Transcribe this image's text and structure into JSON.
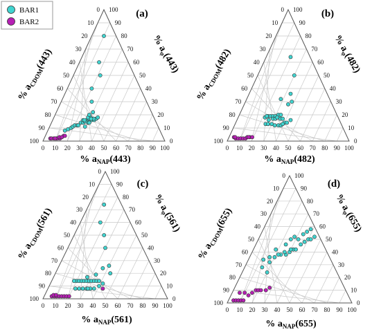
{
  "legend": {
    "items": [
      {
        "label": "BAR1",
        "color": "#40d4d0"
      },
      {
        "label": "BAR2",
        "color": "#b61fb4"
      }
    ]
  },
  "ticks": [
    "0",
    "10",
    "20",
    "30",
    "40",
    "50",
    "60",
    "70",
    "80",
    "90",
    "100"
  ],
  "chart_data": [
    {
      "type": "scatter",
      "panel_label": "(a)",
      "left_axis": {
        "pre": "% a",
        "sub": "CDOM",
        "post": "(443)"
      },
      "right_axis": {
        "pre": "% a",
        "sub": "φ",
        "post": "(443)"
      },
      "bottom_axis": {
        "pre": "% a",
        "sub": "NAP",
        "post": "(443)"
      },
      "series": [
        {
          "name": "BAR1",
          "points": [
            [
              14,
              78,
              8
            ],
            [
              16,
              75,
              9
            ],
            [
              18,
              72,
              10
            ],
            [
              19,
              70,
              11
            ],
            [
              20,
              68,
              12
            ],
            [
              22,
              66,
              12
            ],
            [
              24,
              62,
              14
            ],
            [
              23,
              65,
              12
            ],
            [
              26,
              60,
              14
            ],
            [
              27,
              58,
              15
            ],
            [
              28,
              56,
              16
            ],
            [
              29,
              54,
              17
            ],
            [
              30,
              56,
              14
            ],
            [
              32,
              52,
              16
            ],
            [
              31,
              55,
              14
            ],
            [
              34,
              50,
              16
            ],
            [
              35,
              48,
              17
            ],
            [
              33,
              50,
              17
            ],
            [
              30,
              52,
              18
            ],
            [
              28,
              54,
              18
            ],
            [
              27,
              58,
              15
            ],
            [
              25,
              59,
              16
            ],
            [
              36,
              46,
              18
            ],
            [
              31,
              52,
              17
            ],
            [
              26,
              58,
              16
            ],
            [
              30,
              48,
              22
            ],
            [
              28,
              52,
              20
            ],
            [
              29,
              60,
              11
            ],
            [
              25,
              45,
              30
            ],
            [
              20,
              40,
              40
            ],
            [
              22,
              28,
              50
            ],
            [
              16,
              24,
              60
            ],
            [
              10,
              10,
              80
            ]
          ]
        },
        {
          "name": "BAR2",
          "points": [
            [
              5,
              93,
              2
            ],
            [
              6,
              92,
              2
            ],
            [
              8,
              90,
              2
            ],
            [
              10,
              88,
              2
            ],
            [
              11,
              87,
              2
            ],
            [
              13,
              85,
              2
            ],
            [
              12,
              85,
              3
            ],
            [
              15,
              81,
              4
            ],
            [
              14,
              83,
              3
            ],
            [
              9,
              89,
              2
            ],
            [
              16,
              80,
              4
            ]
          ]
        }
      ]
    },
    {
      "type": "scatter",
      "panel_label": "(b)",
      "left_axis": {
        "pre": "% a",
        "sub": "CDOM",
        "post": "(482)"
      },
      "right_axis": {
        "pre": "% a",
        "sub": "φ",
        "post": "(482)"
      },
      "bottom_axis": {
        "pre": "% a",
        "sub": "NAP",
        "post": "(482)"
      },
      "series": [
        {
          "name": "BAR1",
          "points": [
            [
              22,
              60,
              18
            ],
            [
              24,
              57,
              19
            ],
            [
              26,
              55,
              19
            ],
            [
              28,
              53,
              19
            ],
            [
              30,
              51,
              19
            ],
            [
              32,
              48,
              20
            ],
            [
              34,
              46,
              20
            ],
            [
              25,
              62,
              13
            ],
            [
              27,
              60,
              13
            ],
            [
              30,
              57,
              13
            ],
            [
              33,
              55,
              12
            ],
            [
              36,
              52,
              12
            ],
            [
              38,
              50,
              12
            ],
            [
              40,
              46,
              14
            ],
            [
              42,
              44,
              14
            ],
            [
              23,
              58,
              19
            ],
            [
              29,
              54,
              17
            ],
            [
              31,
              52,
              17
            ],
            [
              35,
              48,
              17
            ],
            [
              37,
              46,
              17
            ],
            [
              26,
              58,
              16
            ],
            [
              32,
              50,
              18
            ],
            [
              44,
              40,
              16
            ],
            [
              39,
              48,
              13
            ],
            [
              36,
              36,
              28
            ],
            [
              34,
              30,
              36
            ],
            [
              28,
              40,
              32
            ],
            [
              30,
              20,
              50
            ],
            [
              20,
              16,
              64
            ],
            [
              38,
              32,
              30
            ]
          ]
        },
        {
          "name": "BAR2",
          "points": [
            [
              4,
              93,
              3
            ],
            [
              6,
              92,
              2
            ],
            [
              8,
              90,
              2
            ],
            [
              10,
              88,
              2
            ],
            [
              12,
              86,
              2
            ],
            [
              14,
              84,
              2
            ],
            [
              15,
              82,
              3
            ],
            [
              17,
              80,
              3
            ],
            [
              19,
              78,
              3
            ],
            [
              16,
              81,
              3
            ],
            [
              5,
              92,
              3
            ]
          ]
        }
      ]
    },
    {
      "type": "scatter",
      "panel_label": "(c)",
      "left_axis": {
        "pre": "% a",
        "sub": "CDOM",
        "post": "(561)"
      },
      "right_axis": {
        "pre": "% a",
        "sub": "φ",
        "post": "(561)"
      },
      "bottom_axis": {
        "pre": "% a",
        "sub": "NAP",
        "post": "(561)"
      },
      "series": [
        {
          "name": "BAR1",
          "points": [
            [
              20,
              66,
              14
            ],
            [
              22,
              64,
              14
            ],
            [
              24,
              62,
              14
            ],
            [
              26,
              60,
              14
            ],
            [
              28,
              58,
              14
            ],
            [
              30,
              56,
              14
            ],
            [
              32,
              54,
              14
            ],
            [
              34,
              52,
              14
            ],
            [
              36,
              50,
              14
            ],
            [
              38,
              48,
              14
            ],
            [
              22,
              70,
              8
            ],
            [
              25,
              67,
              8
            ],
            [
              28,
              64,
              8
            ],
            [
              31,
              61,
              8
            ],
            [
              34,
              58,
              8
            ],
            [
              37,
              55,
              8
            ],
            [
              40,
              50,
              10
            ],
            [
              42,
              46,
              12
            ],
            [
              18,
              68,
              14
            ],
            [
              27,
              56,
              17
            ],
            [
              33,
              48,
              19
            ],
            [
              36,
              40,
              24
            ],
            [
              40,
              34,
              26
            ],
            [
              30,
              30,
              40
            ],
            [
              24,
              26,
              50
            ],
            [
              16,
              24,
              60
            ],
            [
              12,
              14,
              74
            ],
            [
              44,
              36,
              20
            ],
            [
              32,
              60,
              8
            ]
          ]
        },
        {
          "name": "BAR2",
          "points": [
            [
              6,
              92,
              2
            ],
            [
              8,
              90,
              2
            ],
            [
              10,
              88,
              2
            ],
            [
              12,
              86,
              2
            ],
            [
              14,
              84,
              2
            ],
            [
              16,
              82,
              2
            ],
            [
              18,
              80,
              2
            ],
            [
              7,
              90,
              3
            ],
            [
              9,
              88,
              3
            ],
            [
              20,
              78,
              2
            ],
            [
              44,
              48,
              8
            ]
          ]
        }
      ]
    },
    {
      "type": "scatter",
      "panel_label": "(d)",
      "left_axis": {
        "pre": "% a",
        "sub": "CDOM",
        "post": "(655)"
      },
      "right_axis": {
        "pre": "% a",
        "sub": "φ",
        "post": "(655)"
      },
      "bottom_axis": {
        "pre": "% a",
        "sub": "NAP",
        "post": "(655)"
      },
      "series": [
        {
          "name": "BAR1",
          "points": [
            [
              16,
              48,
              36
            ],
            [
              20,
              44,
              36
            ],
            [
              24,
              38,
              38
            ],
            [
              28,
              34,
              38
            ],
            [
              30,
              30,
              40
            ],
            [
              32,
              26,
              42
            ],
            [
              34,
              24,
              42
            ],
            [
              22,
              40,
              38
            ],
            [
              26,
              34,
              40
            ],
            [
              30,
              28,
              42
            ],
            [
              36,
              18,
              46
            ],
            [
              38,
              14,
              48
            ],
            [
              40,
              10,
              50
            ],
            [
              44,
              4,
              52
            ],
            [
              42,
              8,
              50
            ],
            [
              18,
              50,
              32
            ],
            [
              20,
              56,
              24
            ],
            [
              14,
              58,
              28
            ],
            [
              24,
              30,
              46
            ],
            [
              28,
              20,
              52
            ],
            [
              34,
              12,
              54
            ],
            [
              36,
              8,
              56
            ],
            [
              38,
              4,
              58
            ],
            [
              12,
              54,
              34
            ],
            [
              18,
              40,
              42
            ],
            [
              26,
              24,
              50
            ],
            [
              32,
              18,
              50
            ]
          ]
        },
        {
          "name": "BAR2",
          "points": [
            [
              4,
              94,
              2
            ],
            [
              6,
              92,
              2
            ],
            [
              8,
              90,
              2
            ],
            [
              10,
              88,
              2
            ],
            [
              12,
              86,
              2
            ],
            [
              14,
              80,
              6
            ],
            [
              16,
              76,
              8
            ],
            [
              18,
              72,
              10
            ],
            [
              20,
              70,
              10
            ],
            [
              22,
              68,
              10
            ],
            [
              26,
              64,
              10
            ],
            [
              28,
              60,
              12
            ],
            [
              6,
              86,
              8
            ],
            [
              10,
              82,
              8
            ]
          ]
        }
      ]
    }
  ]
}
